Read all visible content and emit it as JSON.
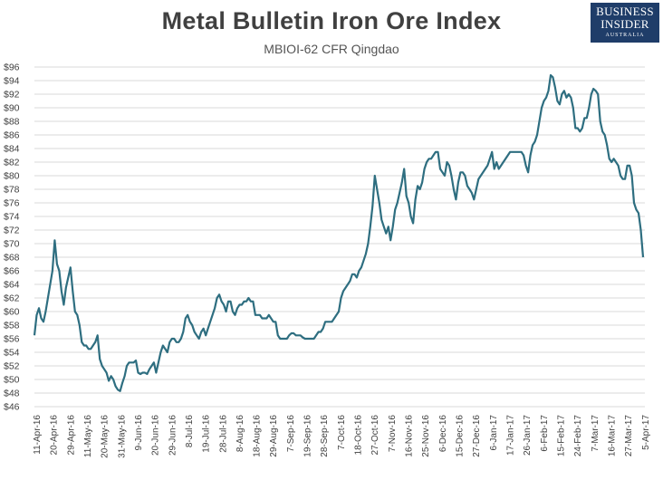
{
  "header": {
    "title": "Metal Bulletin Iron Ore Index",
    "subtitle": "MBIOI-62 CFR Qingdao"
  },
  "logo": {
    "line1": "BUSINESS",
    "line2": "INSIDER",
    "line3": "AUSTRALIA"
  },
  "colors": {
    "line": "#2e6e80",
    "grid": "#d9d9d9",
    "logo_bg": "#1f3d69",
    "text": "#404040"
  },
  "chart_data": {
    "type": "line",
    "title": "Metal Bulletin Iron Ore Index",
    "subtitle": "MBIOI-62 CFR Qingdao",
    "xlabel": "",
    "ylabel": "",
    "ylim": [
      46,
      96
    ],
    "y_ticks": [
      "$46",
      "$48",
      "$50",
      "$52",
      "$54",
      "$56",
      "$58",
      "$60",
      "$62",
      "$64",
      "$66",
      "$68",
      "$70",
      "$72",
      "$74",
      "$76",
      "$78",
      "$80",
      "$82",
      "$84",
      "$86",
      "$88",
      "$90",
      "$92",
      "$94",
      "$96"
    ],
    "x_tick_labels": [
      "11-Apr-16",
      "20-Apr-16",
      "29-Apr-16",
      "11-May-16",
      "20-May-16",
      "31-May-16",
      "9-Jun-16",
      "20-Jun-16",
      "29-Jun-16",
      "8-Jul-16",
      "19-Jul-16",
      "28-Jul-16",
      "8-Aug-16",
      "18-Aug-16",
      "29-Aug-16",
      "7-Sep-16",
      "19-Sep-16",
      "28-Sep-16",
      "7-Oct-16",
      "18-Oct-16",
      "27-Oct-16",
      "7-Nov-16",
      "16-Nov-16",
      "25-Nov-16",
      "6-Dec-16",
      "15-Dec-16",
      "27-Dec-16",
      "6-Jan-17",
      "17-Jan-17",
      "26-Jan-17",
      "6-Feb-17",
      "15-Feb-17",
      "24-Feb-17",
      "7-Mar-17",
      "16-Mar-17",
      "27-Mar-17",
      "5-Apr-17"
    ],
    "grid": true,
    "legend": "none",
    "series": [
      {
        "values": [
          56.5,
          59.5,
          60.5,
          59,
          58.5,
          60,
          62,
          64,
          66,
          70.5,
          67,
          66,
          63,
          61,
          63.5,
          65,
          66.5,
          63,
          60,
          59.5,
          58,
          55.5,
          55,
          55,
          54.5,
          54.5,
          55,
          55.5,
          56.5,
          53,
          52,
          51.5,
          51,
          49.8,
          50.5,
          50,
          49,
          48.5,
          48.3,
          49.5,
          50.5,
          52,
          52.5,
          52.5,
          52.5,
          52.8,
          51,
          50.8,
          51,
          51,
          50.8,
          51.5,
          52,
          52.5,
          51,
          52.5,
          54,
          55,
          54.5,
          54,
          55.5,
          56,
          56,
          55.5,
          55.5,
          56,
          57,
          59,
          59.5,
          58.5,
          58,
          57,
          56.5,
          56,
          57,
          57.5,
          56.5,
          57.5,
          58.5,
          59.5,
          60.5,
          62,
          62.5,
          61.5,
          61,
          60,
          61.5,
          61.5,
          60,
          59.5,
          60.5,
          61,
          61,
          61.5,
          61.5,
          62,
          61.5,
          61.5,
          59.5,
          59.5,
          59.5,
          59,
          59,
          59,
          59.5,
          59,
          58.5,
          58.5,
          56.5,
          56,
          56,
          56,
          56,
          56.5,
          56.8,
          56.8,
          56.5,
          56.5,
          56.5,
          56.2,
          56,
          56,
          56,
          56,
          56,
          56.5,
          57,
          57,
          57.5,
          58.5,
          58.5,
          58.5,
          58.5,
          59,
          59.5,
          60,
          62,
          63,
          63.5,
          64,
          64.5,
          65.5,
          65.5,
          65,
          66,
          66.5,
          67.5,
          68.5,
          70,
          72.5,
          75.5,
          80,
          78,
          76,
          73.5,
          72.5,
          71.5,
          72.5,
          70.5,
          72.5,
          75,
          76,
          77.5,
          79,
          81,
          77,
          76,
          74,
          73,
          76.5,
          78.5,
          78,
          79,
          81,
          82,
          82.5,
          82.5,
          83,
          83.5,
          83.5,
          81,
          80.5,
          80,
          82,
          81.5,
          80,
          78,
          76.5,
          79,
          80.5,
          80.5,
          80,
          78.5,
          78,
          77.5,
          76.5,
          78,
          79.5,
          80,
          80.5,
          81,
          81.5,
          82.5,
          83.5,
          81,
          82,
          81,
          81.5,
          82,
          82.5,
          83,
          83.5,
          83.5,
          83.5,
          83.5,
          83.5,
          83.5,
          83,
          81.5,
          80.5,
          83,
          84.5,
          85,
          86,
          88,
          90,
          91,
          91.5,
          92.5,
          94.8,
          94.5,
          93,
          91,
          90.5,
          92,
          92.5,
          91.5,
          92,
          91.5,
          90,
          87,
          87,
          86.5,
          87,
          88.5,
          88.5,
          90,
          92,
          92.8,
          92.5,
          92,
          88,
          86.5,
          86,
          84.5,
          82.5,
          82,
          82.5,
          82,
          81.5,
          80,
          79.5,
          79.5,
          81.5,
          81.5,
          80,
          76,
          75,
          74.5,
          72,
          68
        ]
      }
    ]
  }
}
